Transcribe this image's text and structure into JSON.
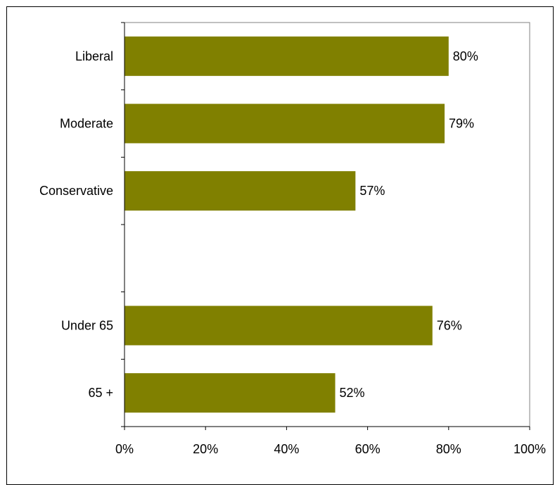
{
  "chart_data": {
    "type": "bar",
    "orientation": "horizontal",
    "categories": [
      "Liberal",
      "Moderate",
      "Conservative",
      "",
      "Under 65",
      "65 +"
    ],
    "values": [
      80,
      79,
      57,
      null,
      76,
      52
    ],
    "data_labels": [
      "80%",
      "79%",
      "57%",
      "",
      "76%",
      "52%"
    ],
    "x_ticks": [
      "0%",
      "20%",
      "40%",
      "60%",
      "80%",
      "100%"
    ],
    "xlim": [
      0,
      100
    ],
    "title": "",
    "xlabel": "",
    "ylabel": "",
    "grid": false,
    "legend": "none",
    "bar_color": "#808000"
  }
}
